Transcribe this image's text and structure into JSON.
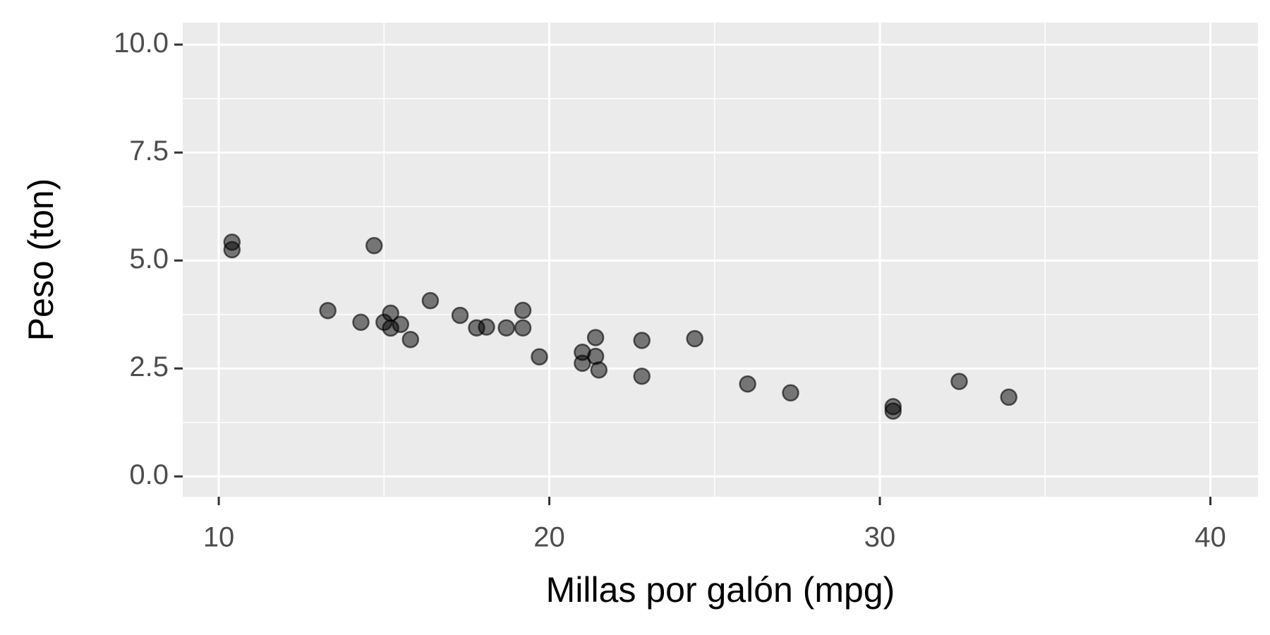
{
  "chart_data": {
    "type": "scatter",
    "x_label": "Millas por galón (mpg)",
    "y_label": "Peso (ton)",
    "x": [
      21.0,
      21.0,
      22.8,
      21.4,
      18.7,
      18.1,
      14.3,
      24.4,
      22.8,
      19.2,
      17.8,
      16.4,
      17.3,
      15.2,
      10.4,
      10.4,
      14.7,
      32.4,
      30.4,
      33.9,
      21.5,
      15.5,
      15.2,
      13.3,
      19.2,
      27.3,
      26.0,
      30.4,
      15.8,
      19.7,
      15.0,
      21.4
    ],
    "values": [
      2.62,
      2.875,
      2.32,
      3.215,
      3.44,
      3.46,
      3.57,
      3.19,
      3.15,
      3.44,
      3.44,
      4.07,
      3.73,
      3.78,
      5.25,
      5.424,
      5.345,
      2.2,
      1.615,
      1.835,
      2.465,
      3.52,
      3.435,
      3.84,
      3.845,
      1.935,
      2.14,
      1.513,
      3.17,
      2.77,
      3.57,
      2.78
    ],
    "color": "#000000",
    "xlim": [
      8.91,
      41.44
    ],
    "ylim": [
      -0.47,
      10.51
    ],
    "xticks": [
      10,
      20,
      30,
      40
    ],
    "yticks": [
      {
        "value": 0,
        "label": "0.0"
      },
      2.5,
      {
        "value": 5,
        "label": "5.0"
      },
      7.5,
      {
        "value": 10,
        "label": "10.0"
      }
    ],
    "grid": true
  }
}
